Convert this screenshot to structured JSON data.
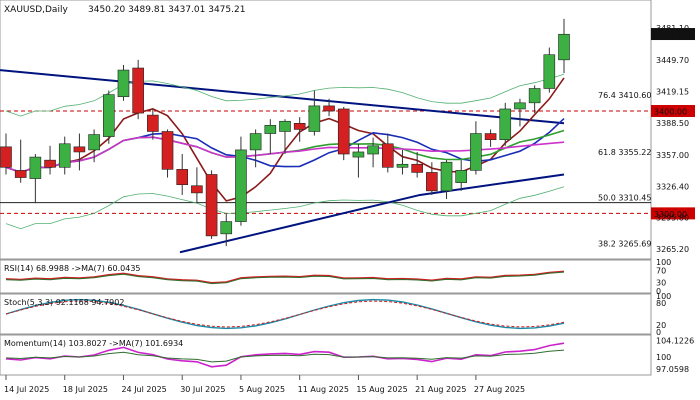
{
  "chart_data": {
    "type": "candlestick",
    "symbol_timeframe": "XAUUSD,Daily",
    "ohlc_text": "3450.20 3489.81 3437.01 3475.21",
    "last_price_label": "3475.21",
    "price_ticks": [
      "3481.10",
      "3449.70",
      "3419.15",
      "3388.50",
      "3357.00",
      "3326.40",
      "3295.80",
      "3265.20"
    ],
    "date_labels": [
      "14 Jul 2025",
      "18 Jul 2025",
      "24 Jul 2025",
      "30 Jul 2025",
      "5 Aug 2025",
      "11 Aug 2025",
      "15 Aug 2025",
      "21 Aug 2025",
      "27 Aug 2025"
    ],
    "fib_levels": [
      {
        "label": "76.4 3410.60",
        "value": 3410.6
      },
      {
        "label": "61.8 3355.22",
        "value": 3355.22
      },
      {
        "label": "50.0 3310.45",
        "value": 3310.45
      },
      {
        "label": "38.2 3265.69",
        "value": 3265.69
      }
    ],
    "marked_levels": [
      {
        "label": "3400.00",
        "value": 3400.0,
        "color": "#cc0000"
      },
      {
        "label": "3300.00",
        "value": 3300.0,
        "color": "#cc0000"
      }
    ],
    "candles": [
      {
        "o": 3365,
        "h": 3378,
        "l": 3338,
        "c": 3345
      },
      {
        "o": 3342,
        "h": 3372,
        "l": 3330,
        "c": 3335
      },
      {
        "o": 3334,
        "h": 3358,
        "l": 3310,
        "c": 3355
      },
      {
        "o": 3352,
        "h": 3366,
        "l": 3338,
        "c": 3345
      },
      {
        "o": 3345,
        "h": 3375,
        "l": 3338,
        "c": 3368
      },
      {
        "o": 3365,
        "h": 3378,
        "l": 3342,
        "c": 3360
      },
      {
        "o": 3362,
        "h": 3382,
        "l": 3350,
        "c": 3377
      },
      {
        "o": 3375,
        "h": 3420,
        "l": 3368,
        "c": 3416
      },
      {
        "o": 3414,
        "h": 3445,
        "l": 3410,
        "c": 3440
      },
      {
        "o": 3442,
        "h": 3450,
        "l": 3392,
        "c": 3398
      },
      {
        "o": 3396,
        "h": 3402,
        "l": 3372,
        "c": 3380
      },
      {
        "o": 3380,
        "h": 3382,
        "l": 3335,
        "c": 3343
      },
      {
        "o": 3343,
        "h": 3358,
        "l": 3318,
        "c": 3328
      },
      {
        "o": 3327,
        "h": 3345,
        "l": 3310,
        "c": 3320
      },
      {
        "o": 3338,
        "h": 3342,
        "l": 3275,
        "c": 3278
      },
      {
        "o": 3280,
        "h": 3300,
        "l": 3268,
        "c": 3292
      },
      {
        "o": 3292,
        "h": 3375,
        "l": 3288,
        "c": 3362
      },
      {
        "o": 3362,
        "h": 3382,
        "l": 3345,
        "c": 3378
      },
      {
        "o": 3378,
        "h": 3392,
        "l": 3358,
        "c": 3386
      },
      {
        "o": 3380,
        "h": 3392,
        "l": 3358,
        "c": 3390
      },
      {
        "o": 3388,
        "h": 3394,
        "l": 3370,
        "c": 3382
      },
      {
        "o": 3380,
        "h": 3420,
        "l": 3376,
        "c": 3405
      },
      {
        "o": 3405,
        "h": 3412,
        "l": 3395,
        "c": 3400
      },
      {
        "o": 3402,
        "h": 3404,
        "l": 3352,
        "c": 3358
      },
      {
        "o": 3355,
        "h": 3368,
        "l": 3335,
        "c": 3360
      },
      {
        "o": 3358,
        "h": 3374,
        "l": 3345,
        "c": 3366
      },
      {
        "o": 3368,
        "h": 3378,
        "l": 3340,
        "c": 3345
      },
      {
        "o": 3345,
        "h": 3362,
        "l": 3338,
        "c": 3348
      },
      {
        "o": 3348,
        "h": 3360,
        "l": 3335,
        "c": 3340
      },
      {
        "o": 3340,
        "h": 3350,
        "l": 3318,
        "c": 3322
      },
      {
        "o": 3322,
        "h": 3352,
        "l": 3314,
        "c": 3350
      },
      {
        "o": 3330,
        "h": 3352,
        "l": 3322,
        "c": 3342
      },
      {
        "o": 3342,
        "h": 3390,
        "l": 3338,
        "c": 3378
      },
      {
        "o": 3378,
        "h": 3382,
        "l": 3365,
        "c": 3372
      },
      {
        "o": 3372,
        "h": 3408,
        "l": 3366,
        "c": 3402
      },
      {
        "o": 3402,
        "h": 3412,
        "l": 3385,
        "c": 3408
      },
      {
        "o": 3408,
        "h": 3425,
        "l": 3398,
        "c": 3422
      },
      {
        "o": 3422,
        "h": 3462,
        "l": 3418,
        "c": 3455
      },
      {
        "o": 3450,
        "h": 3490,
        "l": 3437,
        "c": 3475
      }
    ],
    "indicators": {
      "rsi": {
        "label": "RSI(14) 68.9988  ->MA(7) 60.0435",
        "ticks": [
          "100",
          "70",
          "30",
          "0"
        ]
      },
      "stoch": {
        "label": "Stoch(5,3,3) 92.1168 94.7902",
        "ticks": [
          "100",
          "80",
          "20",
          "0"
        ]
      },
      "momentum": {
        "label": "Momentum(14) 103.8027  ->MA(7) 101.6934",
        "ticks": [
          "104.1226",
          "100",
          "97.0598"
        ],
        "last_value": "103.8027"
      }
    },
    "colors": {
      "bull": "#3cb043",
      "bear": "#d42020",
      "ma_dark_red": "#8b1a1a",
      "ma_blue": "#1a2db8",
      "ma_green": "#2e9e2e",
      "ma_magenta": "#cc33cc",
      "ma_navy": "#00137f",
      "bb": "#50b070"
    }
  }
}
